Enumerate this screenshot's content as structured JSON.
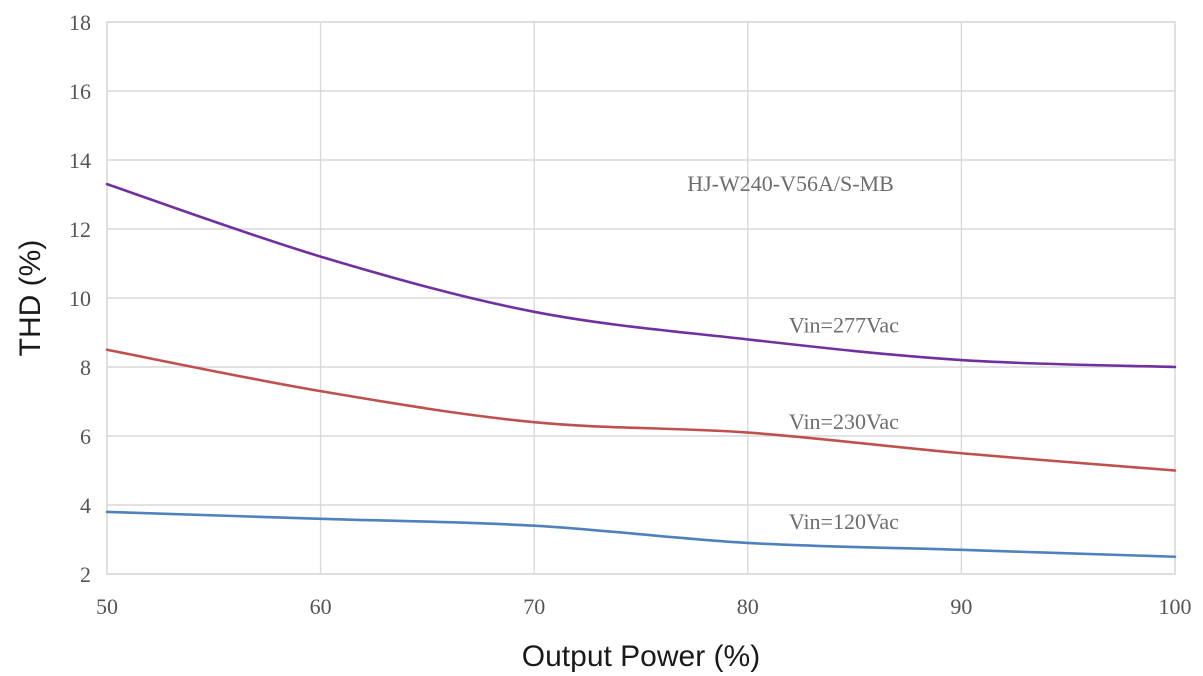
{
  "chart_data": {
    "type": "line",
    "title": "",
    "xlabel": "Output Power (%)",
    "ylabel": "THD (%)",
    "xlim": [
      50,
      100
    ],
    "ylim": [
      2,
      18
    ],
    "x_ticks": [
      50,
      60,
      70,
      80,
      90,
      100
    ],
    "y_ticks": [
      2,
      4,
      6,
      8,
      10,
      12,
      14,
      16,
      18
    ],
    "grid": true,
    "x": [
      50,
      60,
      70,
      80,
      90,
      100
    ],
    "series": [
      {
        "name": "Vin=277Vac",
        "color": "#7030a0",
        "values": [
          13.3,
          11.2,
          9.6,
          8.8,
          8.2,
          8.0
        ]
      },
      {
        "name": "Vin=230Vac",
        "color": "#c0504d",
        "values": [
          8.5,
          7.3,
          6.4,
          6.1,
          5.5,
          5.0
        ]
      },
      {
        "name": "Vin=120Vac",
        "color": "#4f81bd",
        "values": [
          3.8,
          3.6,
          3.4,
          2.9,
          2.7,
          2.5
        ]
      }
    ],
    "annotations": [
      {
        "text": "HJ-W240-V56A/S-MB",
        "x": 82,
        "y": 13.1
      },
      {
        "text": "Vin=277Vac",
        "x": 84.5,
        "y": 9.0
      },
      {
        "text": "Vin=230Vac",
        "x": 84.5,
        "y": 6.2
      },
      {
        "text": "Vin=120Vac",
        "x": 84.5,
        "y": 3.3
      }
    ]
  }
}
